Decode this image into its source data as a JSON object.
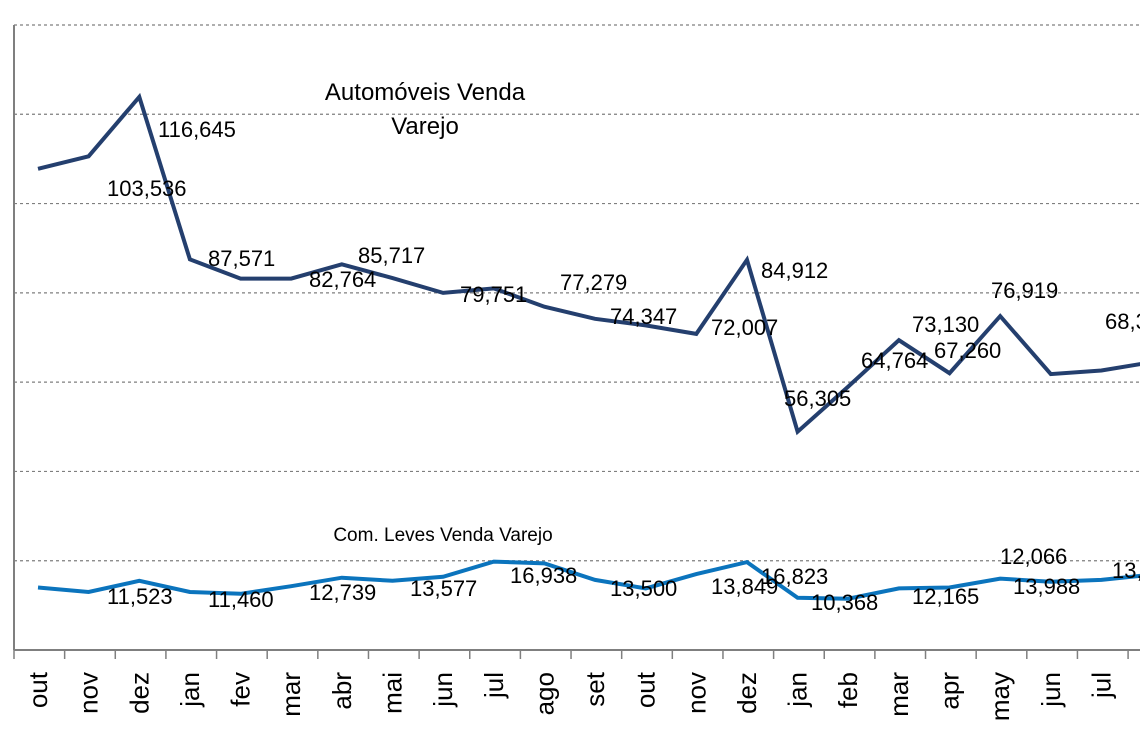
{
  "chart_data": {
    "type": "line",
    "categories": [
      "out",
      "nov",
      "dez",
      "jan",
      "fev",
      "mar",
      "abr",
      "mai",
      "jun",
      "jul",
      "ago",
      "set",
      "out",
      "nov",
      "dez",
      "jan",
      "feb",
      "mar",
      "apr",
      "may",
      "jun",
      "jul",
      ""
    ],
    "series": [
      {
        "name": "Automóveis Venda Varejo",
        "color": "#243f6e",
        "values": [
          107.8,
          110.6,
          123.9,
          87.5,
          83.2,
          83.2,
          86.4,
          83.3,
          80.0,
          81.0,
          76.9,
          74.2,
          72.7,
          70.8,
          87.4,
          48.9,
          59.0,
          69.4,
          62.0,
          74.8,
          61.8,
          62.6,
          64.5
        ],
        "labels": [
          "",
          "103,536",
          "116,645",
          "87,571",
          "",
          "",
          "82,764",
          "85,717",
          "",
          "79,751",
          "77,279",
          "",
          "74,347",
          "72,007",
          "84,912",
          "56,305",
          "64,764",
          "",
          "73,130",
          "76,919",
          "67,260",
          "",
          "68,3"
        ]
      },
      {
        "name": "Com. Leves Venda Varejo",
        "color": "#0b74bd",
        "values": [
          14.0,
          13.0,
          15.5,
          13.0,
          12.6,
          14.3,
          16.2,
          15.5,
          16.4,
          19.8,
          19.4,
          15.7,
          13.8,
          17.0,
          19.7,
          11.7,
          11.5,
          13.8,
          14.0,
          16.0,
          15.3,
          15.7,
          16.9
        ],
        "labels": [
          "",
          "",
          "11,523",
          "",
          "11,460",
          "",
          "12,739",
          "",
          "13,577",
          "",
          "16,938",
          "",
          "13,500",
          "",
          "13,849",
          "16,823",
          "10,368",
          "",
          "12,165",
          "",
          "12,066",
          "13,988",
          "13,"
        ]
      }
    ],
    "ylim": [
      0,
      140
    ],
    "yticks": [
      0,
      20,
      40,
      60,
      80,
      100,
      120,
      140
    ],
    "grid": true,
    "title": "",
    "xlabel": "",
    "ylabel": ""
  }
}
